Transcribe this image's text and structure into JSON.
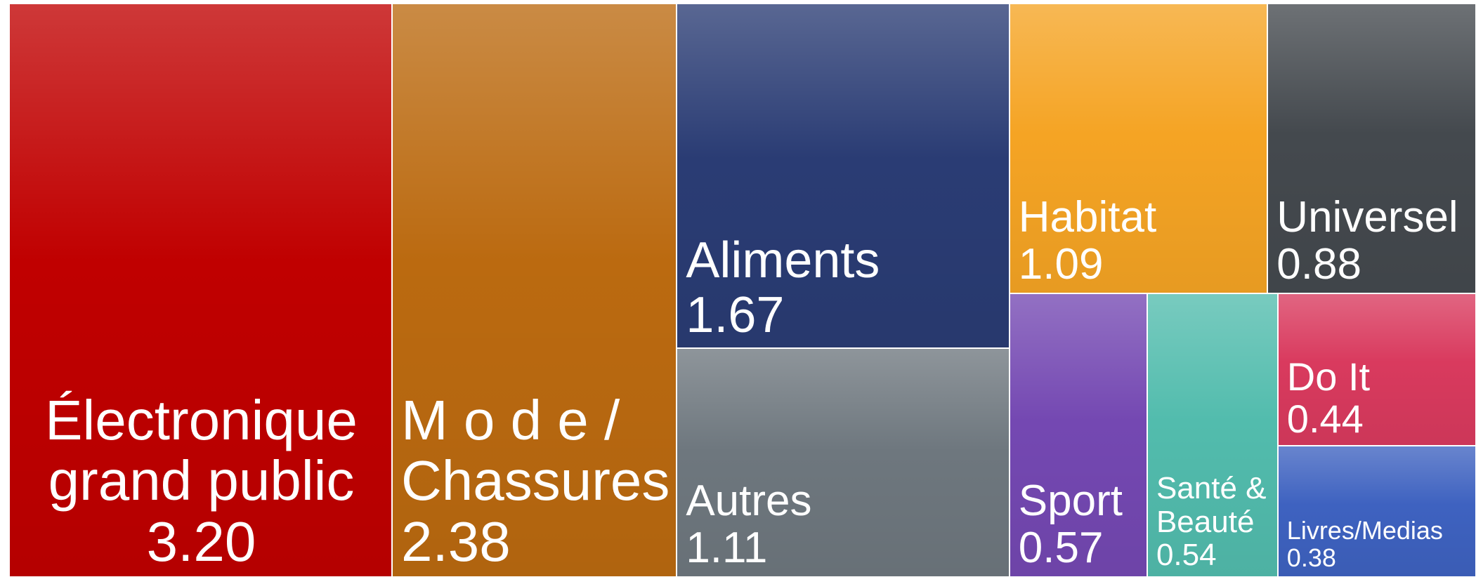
{
  "chart_data": {
    "type": "treemap",
    "categories": [
      "Électronique grand public",
      "M o d e / Chassures",
      "Aliments",
      "Autres",
      "Habitat",
      "Universel",
      "Sport",
      "Santé & Beauté",
      "Do It",
      "Livres/Medias"
    ],
    "values": [
      3.2,
      2.38,
      1.67,
      1.11,
      1.09,
      0.88,
      0.57,
      0.54,
      0.44,
      0.38
    ],
    "value_labels": [
      "3.20",
      "2.38",
      "1.67",
      "1.11",
      "1.09",
      "0.88",
      "0.57",
      "0.54",
      "0.44",
      "0.38"
    ],
    "colors": [
      "#c00000",
      "#bb6a10",
      "#2a3c74",
      "#6e777e",
      "#f5a424",
      "#44494e",
      "#7448b2",
      "#52bcad",
      "#d93a5e",
      "#3e62c0"
    ]
  }
}
